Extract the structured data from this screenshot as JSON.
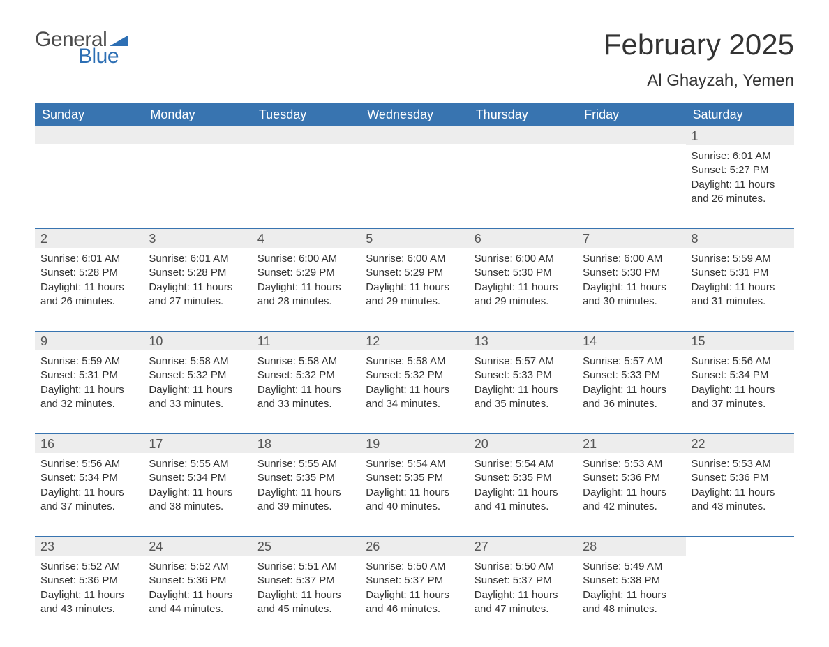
{
  "logo": {
    "text1": "General",
    "text2": "Blue",
    "triangle_color": "#2d6fb4"
  },
  "title": "February 2025",
  "location": "Al Ghayzah, Yemen",
  "colors": {
    "header_bg": "#3874b0",
    "header_text": "#ffffff",
    "daynum_bg": "#ededed",
    "daynum_text": "#555555",
    "body_text": "#333333",
    "rule": "#3874b0"
  },
  "day_headers": [
    "Sunday",
    "Monday",
    "Tuesday",
    "Wednesday",
    "Thursday",
    "Friday",
    "Saturday"
  ],
  "weeks": [
    [
      null,
      null,
      null,
      null,
      null,
      null,
      {
        "n": "1",
        "sunrise": "6:01 AM",
        "sunset": "5:27 PM",
        "daylight": "11 hours and 26 minutes."
      }
    ],
    [
      {
        "n": "2",
        "sunrise": "6:01 AM",
        "sunset": "5:28 PM",
        "daylight": "11 hours and 26 minutes."
      },
      {
        "n": "3",
        "sunrise": "6:01 AM",
        "sunset": "5:28 PM",
        "daylight": "11 hours and 27 minutes."
      },
      {
        "n": "4",
        "sunrise": "6:00 AM",
        "sunset": "5:29 PM",
        "daylight": "11 hours and 28 minutes."
      },
      {
        "n": "5",
        "sunrise": "6:00 AM",
        "sunset": "5:29 PM",
        "daylight": "11 hours and 29 minutes."
      },
      {
        "n": "6",
        "sunrise": "6:00 AM",
        "sunset": "5:30 PM",
        "daylight": "11 hours and 29 minutes."
      },
      {
        "n": "7",
        "sunrise": "6:00 AM",
        "sunset": "5:30 PM",
        "daylight": "11 hours and 30 minutes."
      },
      {
        "n": "8",
        "sunrise": "5:59 AM",
        "sunset": "5:31 PM",
        "daylight": "11 hours and 31 minutes."
      }
    ],
    [
      {
        "n": "9",
        "sunrise": "5:59 AM",
        "sunset": "5:31 PM",
        "daylight": "11 hours and 32 minutes."
      },
      {
        "n": "10",
        "sunrise": "5:58 AM",
        "sunset": "5:32 PM",
        "daylight": "11 hours and 33 minutes."
      },
      {
        "n": "11",
        "sunrise": "5:58 AM",
        "sunset": "5:32 PM",
        "daylight": "11 hours and 33 minutes."
      },
      {
        "n": "12",
        "sunrise": "5:58 AM",
        "sunset": "5:32 PM",
        "daylight": "11 hours and 34 minutes."
      },
      {
        "n": "13",
        "sunrise": "5:57 AM",
        "sunset": "5:33 PM",
        "daylight": "11 hours and 35 minutes."
      },
      {
        "n": "14",
        "sunrise": "5:57 AM",
        "sunset": "5:33 PM",
        "daylight": "11 hours and 36 minutes."
      },
      {
        "n": "15",
        "sunrise": "5:56 AM",
        "sunset": "5:34 PM",
        "daylight": "11 hours and 37 minutes."
      }
    ],
    [
      {
        "n": "16",
        "sunrise": "5:56 AM",
        "sunset": "5:34 PM",
        "daylight": "11 hours and 37 minutes."
      },
      {
        "n": "17",
        "sunrise": "5:55 AM",
        "sunset": "5:34 PM",
        "daylight": "11 hours and 38 minutes."
      },
      {
        "n": "18",
        "sunrise": "5:55 AM",
        "sunset": "5:35 PM",
        "daylight": "11 hours and 39 minutes."
      },
      {
        "n": "19",
        "sunrise": "5:54 AM",
        "sunset": "5:35 PM",
        "daylight": "11 hours and 40 minutes."
      },
      {
        "n": "20",
        "sunrise": "5:54 AM",
        "sunset": "5:35 PM",
        "daylight": "11 hours and 41 minutes."
      },
      {
        "n": "21",
        "sunrise": "5:53 AM",
        "sunset": "5:36 PM",
        "daylight": "11 hours and 42 minutes."
      },
      {
        "n": "22",
        "sunrise": "5:53 AM",
        "sunset": "5:36 PM",
        "daylight": "11 hours and 43 minutes."
      }
    ],
    [
      {
        "n": "23",
        "sunrise": "5:52 AM",
        "sunset": "5:36 PM",
        "daylight": "11 hours and 43 minutes."
      },
      {
        "n": "24",
        "sunrise": "5:52 AM",
        "sunset": "5:36 PM",
        "daylight": "11 hours and 44 minutes."
      },
      {
        "n": "25",
        "sunrise": "5:51 AM",
        "sunset": "5:37 PM",
        "daylight": "11 hours and 45 minutes."
      },
      {
        "n": "26",
        "sunrise": "5:50 AM",
        "sunset": "5:37 PM",
        "daylight": "11 hours and 46 minutes."
      },
      {
        "n": "27",
        "sunrise": "5:50 AM",
        "sunset": "5:37 PM",
        "daylight": "11 hours and 47 minutes."
      },
      {
        "n": "28",
        "sunrise": "5:49 AM",
        "sunset": "5:38 PM",
        "daylight": "11 hours and 48 minutes."
      },
      null
    ]
  ],
  "labels": {
    "sunrise": "Sunrise:",
    "sunset": "Sunset:",
    "daylight": "Daylight:"
  }
}
